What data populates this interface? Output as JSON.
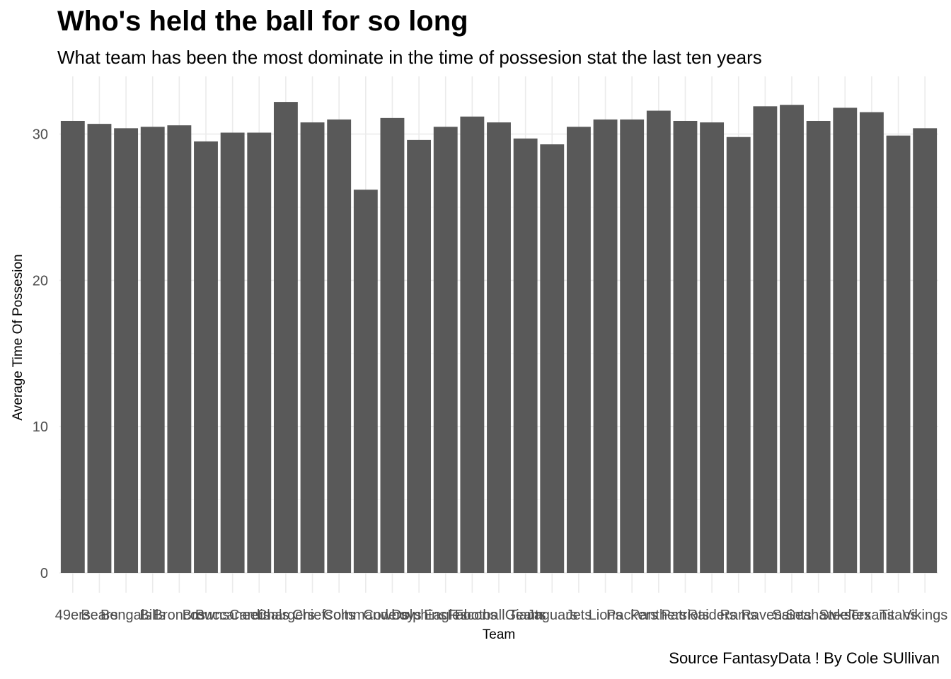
{
  "chart_data": {
    "type": "bar",
    "title": "Who's held the ball for so long",
    "subtitle": "What team has been the most dominate in the time of possesion stat the last ten years",
    "caption": "Source FantasyData ! By Cole SUllivan",
    "xlabel": "Team",
    "ylabel": "Average Time Of Possesion",
    "ylim": [
      0,
      33.3
    ],
    "yticks": [
      0,
      10,
      20,
      30
    ],
    "grid": true,
    "legend": "none",
    "bar_color": "#595959",
    "categories": [
      "49ers",
      "Bears",
      "Bengals",
      "Bills",
      "Broncos",
      "Browns",
      "Buccaneers",
      "Cardinals",
      "Chargers",
      "Chiefs",
      "Colts",
      "Commanders",
      "Cowboys",
      "Dolphins",
      "Eagles",
      "Falcons",
      "Football Team",
      "Giants",
      "Jaguars",
      "Jets",
      "Lions",
      "Packers",
      "Panthers",
      "Patriots",
      "Raiders",
      "Rams",
      "Ravens",
      "Saints",
      "Seahawks",
      "Steelers",
      "Texans",
      "Titans",
      "Vikings"
    ],
    "values": [
      30.9,
      30.7,
      30.4,
      30.5,
      30.6,
      29.5,
      30.1,
      30.1,
      32.2,
      30.8,
      31.0,
      26.2,
      31.1,
      29.6,
      30.5,
      31.2,
      30.8,
      29.7,
      29.3,
      30.5,
      31.0,
      31.0,
      31.6,
      30.9,
      30.8,
      29.8,
      31.9,
      32.0,
      30.9,
      31.8,
      31.5,
      29.9,
      30.4
    ]
  }
}
